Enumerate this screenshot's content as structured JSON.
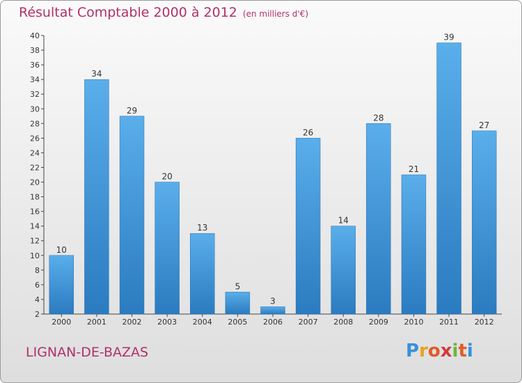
{
  "header": {
    "title": "Résultat Comptable 2000 à 2012",
    "subtitle": "(en milliers d'€)"
  },
  "footer": {
    "commune": "LIGNAN-DE-BAZAS",
    "logo": [
      "P",
      "r",
      "o",
      "x",
      "i",
      "t",
      "i"
    ]
  },
  "colors": {
    "title": "#b0316a",
    "bar_top": "#5aaeea",
    "bar_bottom": "#2b7bc0",
    "logo": [
      "#3a8fd8",
      "#e8a21c",
      "#e05a2a",
      "#d63a3a",
      "#6bb53c",
      "#e05a2a",
      "#3a8fd8"
    ]
  },
  "chart_data": {
    "type": "bar",
    "categories": [
      "2000",
      "2001",
      "2002",
      "2003",
      "2004",
      "2005",
      "2006",
      "2007",
      "2008",
      "2009",
      "2010",
      "2011",
      "2012"
    ],
    "values": [
      10,
      34,
      29,
      20,
      13,
      5,
      3,
      26,
      14,
      28,
      21,
      39,
      27
    ],
    "ylim": [
      2,
      40
    ],
    "yticks": [
      2,
      4,
      6,
      8,
      10,
      12,
      14,
      16,
      18,
      20,
      22,
      24,
      26,
      28,
      30,
      32,
      34,
      36,
      38,
      40
    ],
    "grid": false,
    "legend": "none"
  }
}
